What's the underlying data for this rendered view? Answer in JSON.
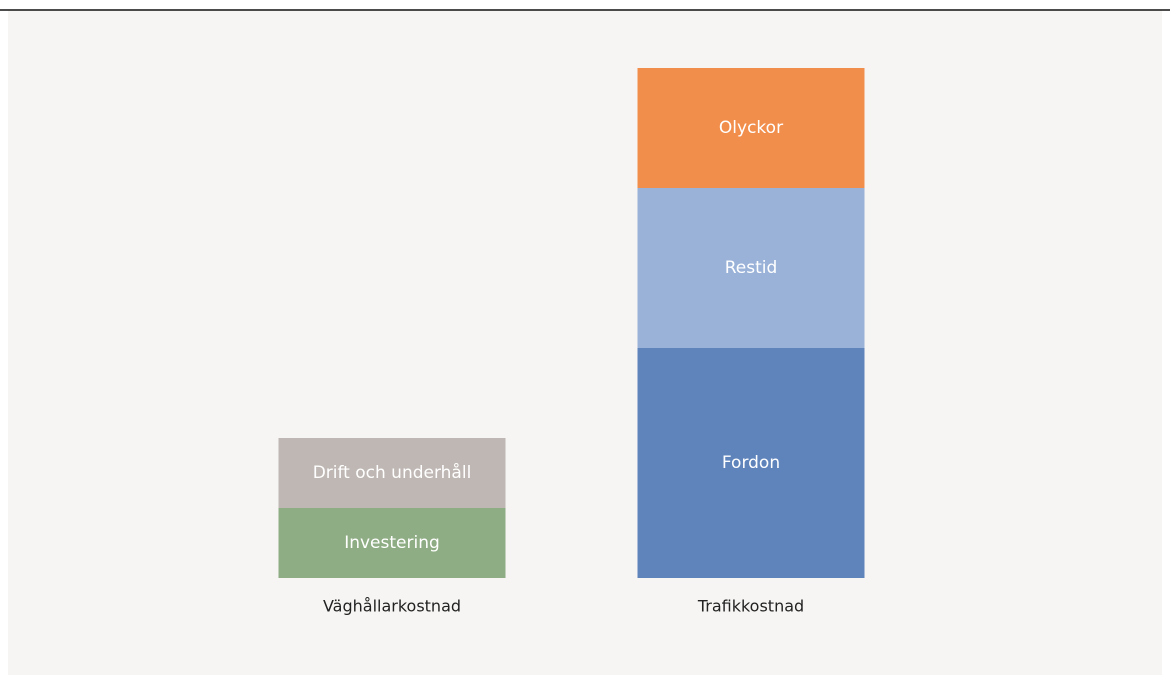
{
  "chart_data": {
    "type": "stacked_bar",
    "categories": [
      "Väghållarkostnad",
      "Trafikkostnad"
    ],
    "series": [
      {
        "name": "Investering",
        "color": "#8fad84",
        "values": [
          7,
          null
        ]
      },
      {
        "name": "Drift och underhåll",
        "color": "#bfb7b3",
        "values": [
          7,
          null
        ]
      },
      {
        "name": "Fordon",
        "color": "#5f84bb",
        "values": [
          null,
          23
        ]
      },
      {
        "name": "Restid",
        "color": "#9ab2d8",
        "values": [
          null,
          16
        ]
      },
      {
        "name": "Olyckor",
        "color": "#f28e4c",
        "values": [
          null,
          12
        ]
      }
    ],
    "ylim": [
      0,
      51
    ]
  }
}
